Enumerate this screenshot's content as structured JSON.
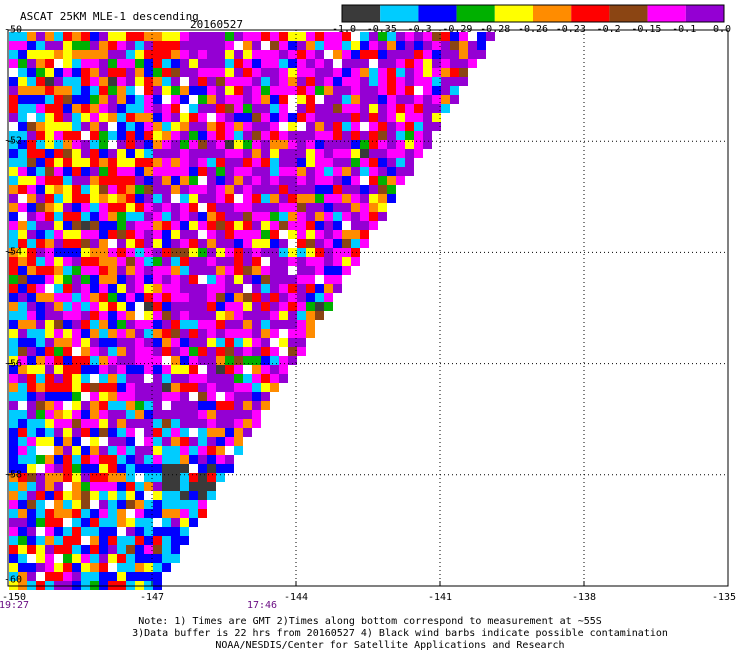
{
  "header": {
    "title": "ASCAT 25KM MLE-1 descending",
    "date": "20160527"
  },
  "colorbar": {
    "colors": [
      "#3a3a3a",
      "#00ccff",
      "#0000ff",
      "#00b000",
      "#ffff00",
      "#ff8c00",
      "#ff0000",
      "#8b4513",
      "#ff00ff",
      "#9400d3"
    ],
    "labels": [
      "-1.0",
      "-0.35",
      "-0.3",
      "-0.29",
      "-0.28",
      "-0.26",
      "-0.23",
      "-0.2",
      "-0.15",
      "-0.1",
      "0.0"
    ]
  },
  "axes": {
    "x_labels": [
      "-150",
      "-147",
      "-144",
      "-141",
      "-138",
      "-135"
    ],
    "y_labels": [
      "-50",
      "-52",
      "-54",
      "-56",
      "-58",
      "-60"
    ],
    "xlim": [
      -150,
      -135
    ],
    "ylim": [
      -60,
      -50
    ]
  },
  "time_labels": [
    "19:27",
    "17:46"
  ],
  "notes": [
    "Note: 1) Times are GMT 2)Times along bottom correspond to measurement at ~55S",
    "3)Data buffer is 22 hrs from 20160527 4) Black wind barbs indicate possible contamination",
    "NOAA/NESDIS/Center for Satellite Applications and Research"
  ]
}
